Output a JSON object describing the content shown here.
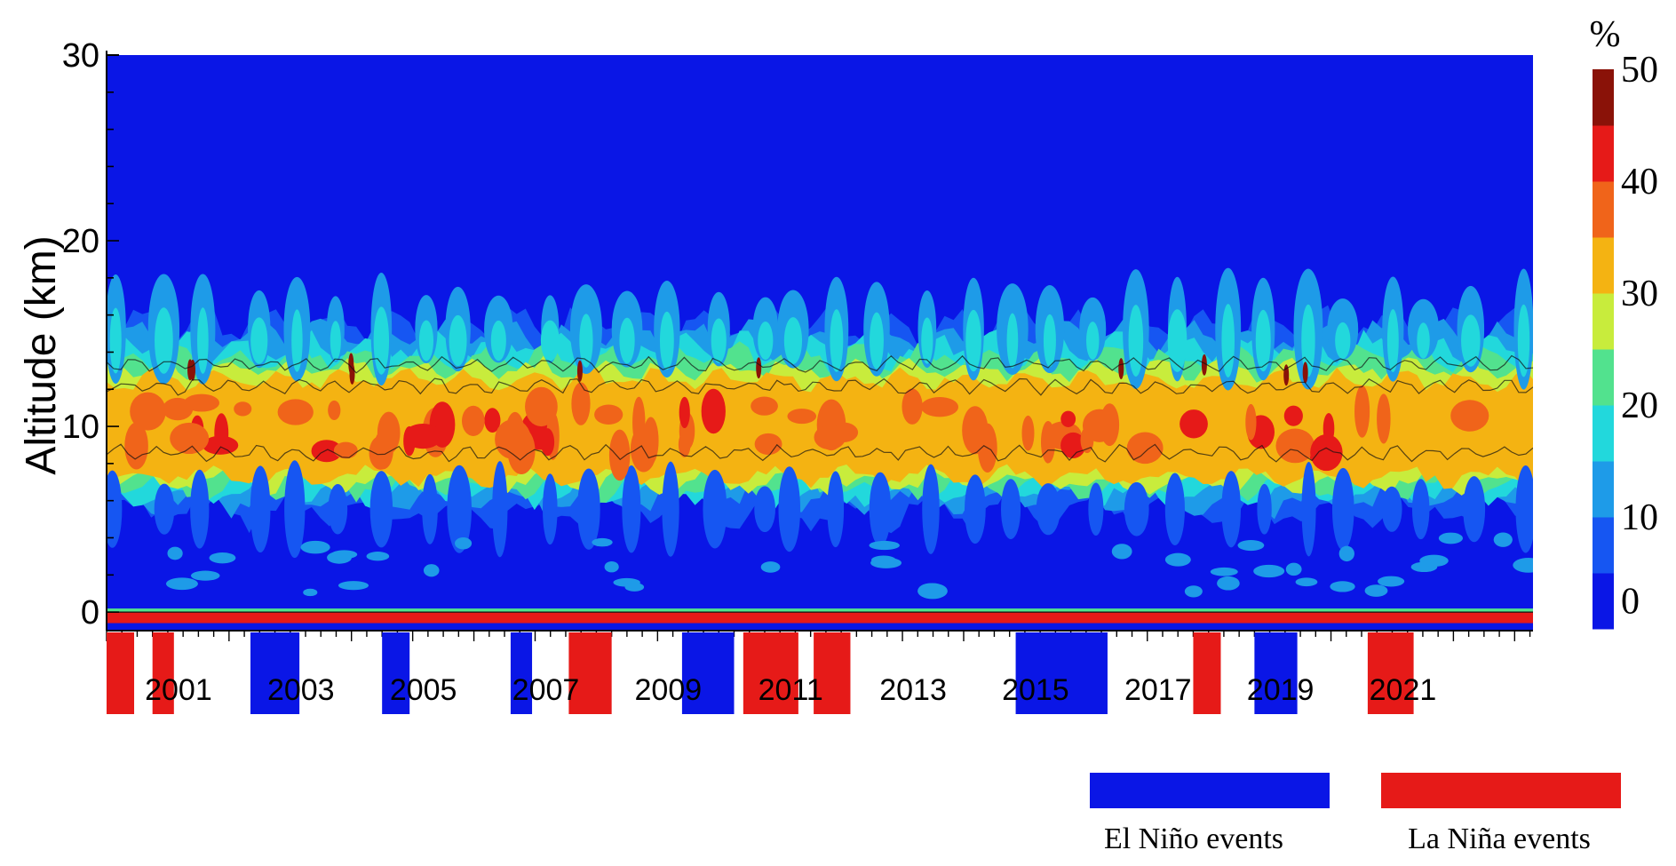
{
  "chart_data": {
    "type": "heatmap",
    "title": "",
    "ylabel": "Altitude (km)",
    "xlabel": "",
    "x_range": [
      2000.0,
      2023.3
    ],
    "ylim": [
      -1,
      30
    ],
    "y_ticks": [
      0,
      10,
      20,
      30
    ],
    "x_tick_labels": [
      "2001",
      "2003",
      "2005",
      "2007",
      "2009",
      "2011",
      "2013",
      "2015",
      "2017",
      "2019",
      "2021"
    ],
    "x_tick_values": [
      2001,
      2003,
      2005,
      2007,
      2009,
      2011,
      2013,
      2015,
      2017,
      2019,
      2021
    ],
    "colorbar": {
      "unit": "%",
      "ticks": [
        "0",
        "10",
        "20",
        "30",
        "40",
        "50"
      ],
      "levels": [
        0,
        5,
        10,
        15,
        20,
        25,
        30,
        35,
        40,
        45,
        50
      ],
      "colors": [
        "#0a16e6",
        "#1656f2",
        "#1e9be8",
        "#22d8dc",
        "#52e28e",
        "#c8ec3c",
        "#f4b312",
        "#f0641a",
        "#e61a18",
        "#8a1208"
      ]
    },
    "layers": {
      "background_level": 0,
      "band_center_km": 10,
      "band_bottom_km": 6.5,
      "band_top_km": 15,
      "surface_layer_km": [
        -0.5,
        0
      ]
    },
    "enso_events": [
      {
        "type": "La Nina",
        "start": 2000.0,
        "end": 2000.45
      },
      {
        "type": "La Nina",
        "start": 2000.75,
        "end": 2001.1
      },
      {
        "type": "El Nino",
        "start": 2002.35,
        "end": 2003.15
      },
      {
        "type": "El Nino",
        "start": 2004.5,
        "end": 2004.95
      },
      {
        "type": "El Nino",
        "start": 2006.6,
        "end": 2006.95
      },
      {
        "type": "La Nina",
        "start": 2007.55,
        "end": 2008.25
      },
      {
        "type": "El Nino",
        "start": 2009.4,
        "end": 2010.25
      },
      {
        "type": "La Nina",
        "start": 2010.4,
        "end": 2011.3
      },
      {
        "type": "La Nina",
        "start": 2011.55,
        "end": 2012.15
      },
      {
        "type": "El Nino",
        "start": 2014.85,
        "end": 2016.35
      },
      {
        "type": "La Nina",
        "start": 2017.75,
        "end": 2018.2
      },
      {
        "type": "El Nino",
        "start": 2018.75,
        "end": 2019.45
      },
      {
        "type": "La Nina",
        "start": 2020.6,
        "end": 2021.35
      }
    ],
    "legend": {
      "placement": "bottom-right",
      "el_nino": {
        "label": "El Niño events",
        "color": "#0a16e6"
      },
      "la_nina": {
        "label": "La Niña events",
        "color": "#e61a18"
      }
    }
  }
}
